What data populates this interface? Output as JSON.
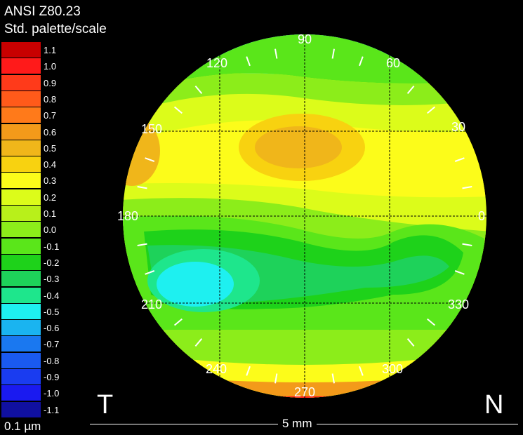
{
  "header": {
    "line1": "ANSI Z80.23",
    "line2": "Std. palette/scale"
  },
  "scale": {
    "unit": "0.1 µm",
    "steps": [
      {
        "label": "1.1",
        "color": "#c80000"
      },
      {
        "label": "1.0",
        "color": "#ff1a1a"
      },
      {
        "label": "0.9",
        "color": "#ff3a1a"
      },
      {
        "label": "0.8",
        "color": "#ff5a1a"
      },
      {
        "label": "0.7",
        "color": "#ff7a1a"
      },
      {
        "label": "0.6",
        "color": "#f39a1a"
      },
      {
        "label": "0.5",
        "color": "#f0b61a"
      },
      {
        "label": "0.4",
        "color": "#f8d210"
      },
      {
        "label": "0.3",
        "color": "#fcfc1a"
      },
      {
        "label": "0.2",
        "color": "#dcfc1a"
      },
      {
        "label": "0.1",
        "color": "#b8f01a"
      },
      {
        "label": "0.0",
        "color": "#8ced1a"
      },
      {
        "label": "-0.1",
        "color": "#5ae61a"
      },
      {
        "label": "-0.2",
        "color": "#1ed21a"
      },
      {
        "label": "-0.3",
        "color": "#1ed25a"
      },
      {
        "label": "-0.4",
        "color": "#1ee68c"
      },
      {
        "label": "-0.5",
        "color": "#1ef0f0"
      },
      {
        "label": "-0.6",
        "color": "#1ab4f0"
      },
      {
        "label": "-0.7",
        "color": "#1a78f0"
      },
      {
        "label": "-0.8",
        "color": "#1a5af0"
      },
      {
        "label": "-0.9",
        "color": "#1a3cf0"
      },
      {
        "label": "-1.0",
        "color": "#1a1af0"
      },
      {
        "label": "-1.1",
        "color": "#1010a0"
      }
    ]
  },
  "map": {
    "angles": [
      "90",
      "60",
      "30",
      "0",
      "330",
      "300",
      "270",
      "240",
      "210",
      "180",
      "150",
      "120"
    ],
    "temporal": "T",
    "nasal": "N",
    "scalebar": "5 mm"
  }
}
